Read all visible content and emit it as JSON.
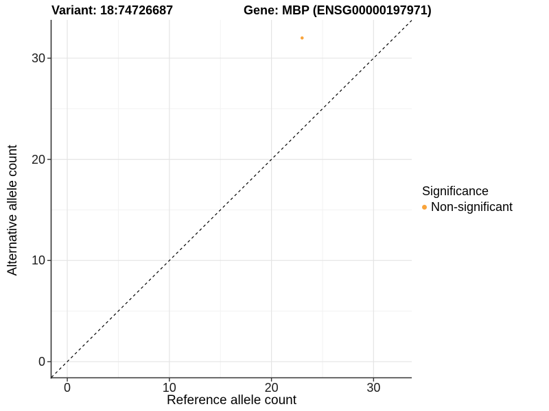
{
  "chart_data": {
    "type": "scatter",
    "title_left": "Variant: 18:74726687",
    "title_right": "Gene: MBP (ENSG00000197971)",
    "xlabel": "Reference allele count",
    "ylabel": "Alternative allele count",
    "xlim": [
      -1.55,
      33.74
    ],
    "ylim": [
      -1.63,
      33.79
    ],
    "xticks": [
      0,
      10,
      20,
      30
    ],
    "yticks": [
      0,
      10,
      20,
      30
    ],
    "xticks_minor": [
      5,
      15,
      25
    ],
    "yticks_minor": [
      5,
      15,
      25
    ],
    "grid": "major+minor",
    "points": [
      {
        "x": 23,
        "y": 32,
        "series": "Non-significant"
      }
    ],
    "abline": {
      "slope": 1,
      "intercept": 0,
      "style": "dashed"
    },
    "legend": {
      "position": "right",
      "title": "Significance",
      "entries": [
        {
          "label": "Non-significant",
          "color": "#F9A43B"
        }
      ]
    },
    "colors": {
      "point": "#F9A43B",
      "dashed_line": "#000000",
      "axis": "#333333",
      "grid_major": "#E4E4E4",
      "grid_minor": "#F2F2F2",
      "background": "#FFFFFF",
      "text": "#000000"
    }
  }
}
